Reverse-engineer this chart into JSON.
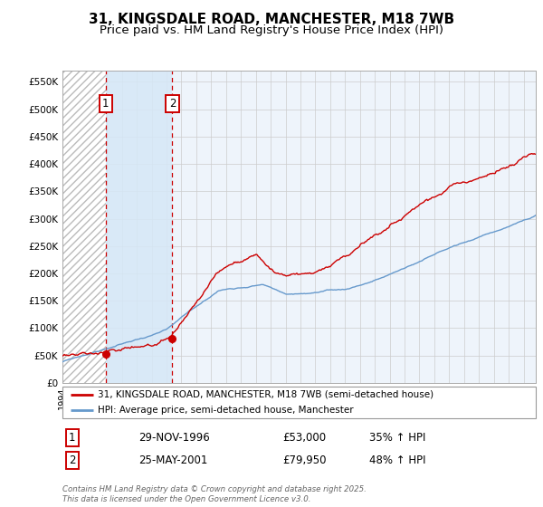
{
  "title": "31, KINGSDALE ROAD, MANCHESTER, M18 7WB",
  "subtitle": "Price paid vs. HM Land Registry's House Price Index (HPI)",
  "ylim": [
    0,
    570000
  ],
  "yticks": [
    0,
    50000,
    100000,
    150000,
    200000,
    250000,
    300000,
    350000,
    400000,
    450000,
    500000,
    550000
  ],
  "ytick_labels": [
    "£0",
    "£50K",
    "£100K",
    "£150K",
    "£200K",
    "£250K",
    "£300K",
    "£350K",
    "£400K",
    "£450K",
    "£500K",
    "£550K"
  ],
  "xlim_start": 1994.0,
  "xlim_end": 2025.83,
  "background_color": "#ffffff",
  "plot_bg_color": "#ffffff",
  "grid_color": "#cccccc",
  "sale1_date": 1996.91,
  "sale1_price": 53000,
  "sale1_label": "1",
  "sale2_date": 2001.39,
  "sale2_price": 79950,
  "sale2_label": "2",
  "sale_color": "#cc0000",
  "hpi_color": "#6699cc",
  "legend_label_red": "31, KINGSDALE ROAD, MANCHESTER, M18 7WB (semi-detached house)",
  "legend_label_blue": "HPI: Average price, semi-detached house, Manchester",
  "annotation1_date": "29-NOV-1996",
  "annotation1_price": "£53,000",
  "annotation1_hpi": "35% ↑ HPI",
  "annotation2_date": "25-MAY-2001",
  "annotation2_price": "£79,950",
  "annotation2_hpi": "48% ↑ HPI",
  "footer": "Contains HM Land Registry data © Crown copyright and database right 2025.\nThis data is licensed under the Open Government Licence v3.0.",
  "title_fontsize": 11,
  "subtitle_fontsize": 9.5
}
